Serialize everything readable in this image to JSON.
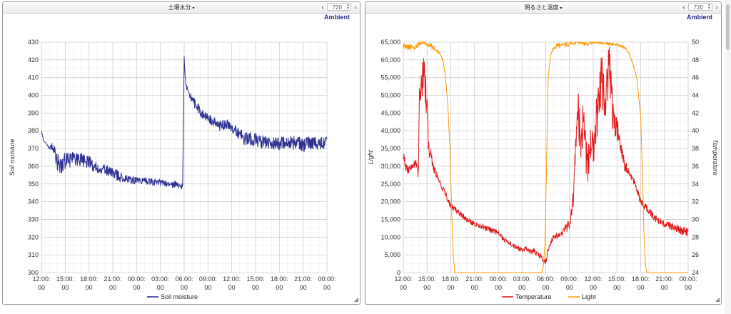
{
  "left_panel": {
    "title": "土壌水分",
    "range_value": "720",
    "brand": "Ambient",
    "prev_icon": "chevron-left-icon",
    "next_icon": "chevron-right-icon"
  },
  "right_panel": {
    "title": "明るさと温度",
    "range_value": "720",
    "brand": "Ambient",
    "prev_icon": "chevron-left-icon",
    "next_icon": "chevron-right-icon"
  },
  "chart_data": [
    {
      "type": "line",
      "x_tick_labels": [
        [
          "12:00:",
          "00"
        ],
        [
          "15:00:",
          "00"
        ],
        [
          "18:00:",
          "00"
        ],
        [
          "21:00:",
          "00"
        ],
        [
          "00:00:",
          "00"
        ],
        [
          "03:00:",
          "00"
        ],
        [
          "06:00:",
          "00"
        ],
        [
          "09:00:",
          "00"
        ],
        [
          "12:00:",
          "00"
        ],
        [
          "15:00:",
          "00"
        ],
        [
          "18:00:",
          "00"
        ],
        [
          "21:00:",
          "00"
        ],
        [
          "00:00:",
          "00"
        ]
      ],
      "x_hours": [
        0,
        3,
        6,
        9,
        12,
        15,
        18,
        21,
        24,
        27,
        30,
        33,
        36
      ],
      "ylabel": "Soil moisture",
      "ylim": [
        300,
        430
      ],
      "y_ticks": [
        300,
        310,
        320,
        330,
        340,
        350,
        360,
        370,
        380,
        390,
        400,
        410,
        420,
        430
      ],
      "grid": true,
      "legend_position": "bottom",
      "series": [
        {
          "name": "Soil moisture",
          "color": "#2e3192",
          "x": [
            0,
            0.3,
            0.6,
            1.0,
            1.3,
            1.6,
            2.0,
            2.5,
            3,
            4,
            5,
            6,
            7,
            8,
            9,
            10,
            11,
            12,
            13,
            14,
            15,
            16,
            17,
            17.8,
            18.0,
            18.1,
            18.3,
            18.7,
            19.5,
            20.5,
            21.5,
            22,
            22.5,
            23,
            23.5,
            24,
            24.5,
            25,
            25.5,
            26,
            26.5,
            27,
            27.5,
            28,
            28.5,
            29,
            29.5,
            30,
            31,
            32,
            33,
            34,
            35,
            36
          ],
          "y": [
            380,
            374,
            373,
            370,
            371,
            368,
            362,
            360,
            363,
            364,
            364,
            362,
            359,
            358,
            356,
            354,
            353,
            352,
            352,
            351,
            351,
            350,
            350,
            349,
            422,
            412,
            404,
            400,
            394,
            388,
            386,
            384,
            383,
            383,
            384,
            381,
            380,
            378,
            376,
            376,
            375,
            375,
            374,
            374,
            373,
            373,
            372,
            373,
            373,
            373,
            372,
            373,
            373,
            373
          ],
          "noise": [
            0,
            0,
            0,
            1,
            2,
            4,
            5,
            5,
            5,
            4,
            4,
            4,
            3,
            3,
            3,
            3,
            3,
            2,
            2,
            2,
            2,
            2,
            2,
            2,
            0,
            1,
            2,
            2,
            3,
            3,
            3,
            3,
            3,
            3,
            3,
            3,
            3,
            3,
            4,
            4,
            4,
            4,
            4,
            4,
            4,
            4,
            4,
            4,
            4,
            4,
            4,
            4,
            4,
            4
          ]
        }
      ]
    },
    {
      "type": "line",
      "x_tick_labels": [
        [
          "12:00:",
          "00"
        ],
        [
          "15:00:",
          "00"
        ],
        [
          "18:00:",
          "00"
        ],
        [
          "21:00:",
          "00"
        ],
        [
          "00:00:",
          "00"
        ],
        [
          "03:00:",
          "00"
        ],
        [
          "06:00:",
          "00"
        ],
        [
          "09:00:",
          "00"
        ],
        [
          "12:00:",
          "00"
        ],
        [
          "15:00:",
          "00"
        ],
        [
          "18:00:",
          "00"
        ],
        [
          "21:00:",
          "00"
        ],
        [
          "00:00:",
          "00"
        ]
      ],
      "x_hours": [
        0,
        3,
        6,
        9,
        12,
        15,
        18,
        21,
        24,
        27,
        30,
        33,
        36
      ],
      "ylabel": "Light",
      "ylim": [
        0,
        65000
      ],
      "y_ticks": [
        0,
        5000,
        10000,
        15000,
        20000,
        25000,
        30000,
        35000,
        40000,
        45000,
        50000,
        55000,
        60000,
        65000
      ],
      "y_tick_labels": [
        "0",
        "5,000",
        "10,000",
        "15,000",
        "20,000",
        "25,000",
        "30,000",
        "35,000",
        "40,000",
        "45,000",
        "50,000",
        "55,000",
        "60,000",
        "65,000"
      ],
      "y2label": "Temperature",
      "y2lim": [
        24,
        50
      ],
      "y2_ticks": [
        24,
        26,
        28,
        30,
        32,
        34,
        36,
        38,
        40,
        42,
        44,
        46,
        48,
        50
      ],
      "grid": true,
      "legend_position": "bottom",
      "series": [
        {
          "name": "Temperature",
          "axis": "right",
          "color": "#e31a1c",
          "x": [
            0,
            0.3,
            0.6,
            1.0,
            1.5,
            1.9,
            2.0,
            2.2,
            2.5,
            2.8,
            3.0,
            3.2,
            3.5,
            3.7,
            4.0,
            4.5,
            5,
            6,
            7,
            8,
            9,
            10,
            11,
            12,
            13,
            14,
            15,
            15.5,
            16,
            16.5,
            17,
            17.5,
            17.8,
            18.0,
            18.3,
            18.7,
            19,
            19.5,
            20,
            20.5,
            21,
            21.5,
            22,
            22.5,
            22.8,
            23,
            23.3,
            23.6,
            24,
            24.3,
            24.6,
            25,
            25.5,
            26,
            26.3,
            26.7,
            27,
            27.3,
            27.6,
            28,
            28.5,
            29,
            29.5,
            30,
            31,
            32,
            33,
            34,
            35,
            36
          ],
          "y": [
            37.5,
            36,
            35.5,
            36,
            36.5,
            35,
            43,
            45.5,
            46,
            45,
            42.5,
            38,
            37.5,
            36,
            35.5,
            34.5,
            33.5,
            31.5,
            30.8,
            30,
            29.5,
            29.2,
            28.8,
            28.5,
            27.5,
            27,
            26.5,
            26.8,
            26.3,
            26.5,
            26,
            25.8,
            25.2,
            25.2,
            26.5,
            27.5,
            28,
            28.2,
            28.5,
            29,
            29.5,
            32.5,
            43,
            38,
            42,
            38,
            36,
            38.5,
            38,
            40,
            43,
            46,
            43,
            47,
            44,
            40,
            40,
            39,
            37.5,
            36,
            35.5,
            34.5,
            33.5,
            32,
            31,
            30,
            29.5,
            29.2,
            28.8,
            28.5
          ],
          "noise": [
            0.5,
            0.5,
            0.5,
            0.5,
            0.5,
            0.8,
            1.5,
            2,
            2.5,
            2.5,
            2,
            1,
            0.8,
            0.5,
            0.5,
            0.4,
            0.4,
            0.3,
            0.3,
            0.3,
            0.3,
            0.3,
            0.3,
            0.3,
            0.3,
            0.3,
            0.3,
            0.3,
            0.3,
            0.3,
            0.3,
            0.3,
            0.3,
            0.3,
            0.3,
            0.3,
            0.3,
            0.4,
            0.4,
            0.5,
            0.6,
            1,
            2.5,
            2.5,
            2.5,
            2.5,
            2,
            2,
            2,
            2.5,
            3,
            3,
            3,
            3,
            2.5,
            2,
            1.5,
            1,
            0.8,
            0.6,
            0.5,
            0.5,
            0.5,
            0.4,
            0.4,
            0.4,
            0.4,
            0.4,
            0.5,
            0.5
          ]
        },
        {
          "name": "Light",
          "axis": "left",
          "color": "#ff9900",
          "x": [
            0,
            0.5,
            1,
            1.5,
            2,
            2.5,
            3,
            3.5,
            4,
            4.5,
            5,
            5.3,
            5.6,
            5.9,
            6.1,
            6.3,
            6.5,
            17.5,
            17.7,
            17.9,
            18.1,
            18.3,
            18.6,
            19,
            19.5,
            20,
            21,
            22,
            23,
            24,
            25,
            26,
            27,
            28,
            28.5,
            29,
            29.5,
            30,
            30.2,
            30.4,
            30.6,
            30.8,
            31.2,
            36
          ],
          "y": [
            64000,
            63500,
            64000,
            63500,
            64500,
            65000,
            64500,
            64000,
            63000,
            62000,
            60000,
            56000,
            48000,
            35000,
            18000,
            5000,
            0,
            0,
            2000,
            8000,
            30000,
            55000,
            61000,
            63500,
            64000,
            64000,
            64500,
            65000,
            64500,
            65000,
            64800,
            64500,
            64200,
            63500,
            62000,
            59000,
            55000,
            44000,
            30000,
            12000,
            2000,
            0,
            0,
            0
          ],
          "noise": [
            800,
            800,
            800,
            800,
            600,
            500,
            600,
            800,
            600,
            500,
            400,
            300,
            0,
            0,
            0,
            0,
            0,
            0,
            0,
            0,
            0,
            0,
            400,
            600,
            700,
            800,
            800,
            500,
            600,
            500,
            500,
            400,
            400,
            400,
            400,
            300,
            200,
            0,
            0,
            0,
            0,
            0,
            0,
            0
          ]
        }
      ]
    }
  ]
}
